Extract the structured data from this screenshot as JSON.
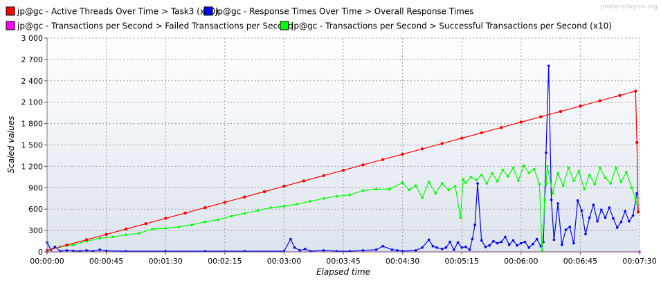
{
  "chart_data": {
    "type": "line",
    "title": "",
    "watermark": "jmeter-plugins.org",
    "xlabel": "Elapsed time",
    "ylabel": "Scaled values",
    "x_unit": "seconds elapsed",
    "xlim": [
      0,
      450
    ],
    "ylim": [
      0,
      3000
    ],
    "x_ticks": [
      0,
      45,
      90,
      135,
      180,
      225,
      270,
      315,
      360,
      405,
      450
    ],
    "x_tick_labels": [
      "00:00:00",
      "00:00:45",
      "00:01:30",
      "00:02:15",
      "00:03:00",
      "00:03:45",
      "00:04:30",
      "00:05:15",
      "00:06:00",
      "00:06:45",
      "00:07:30"
    ],
    "y_ticks": [
      0,
      300,
      600,
      900,
      1200,
      1500,
      1800,
      2100,
      2400,
      2700,
      3000
    ],
    "y_tick_labels": [
      "0",
      "300",
      "600",
      "900",
      "1 200",
      "1 500",
      "1 800",
      "2 100",
      "2 400",
      "2 700",
      "3 000"
    ],
    "grid": true,
    "legend_position": "top",
    "series": [
      {
        "name": "jp@gc - Active Threads Over Time > Task3 (x10)",
        "color": "#ff0000",
        "x": [
          0,
          15,
          30,
          45,
          60,
          75,
          90,
          105,
          120,
          135,
          150,
          165,
          180,
          195,
          210,
          225,
          240,
          255,
          270,
          285,
          300,
          315,
          330,
          345,
          360,
          375,
          390,
          405,
          420,
          435,
          447,
          448,
          449
        ],
        "values": [
          20,
          95,
          170,
          245,
          320,
          395,
          470,
          545,
          620,
          695,
          770,
          845,
          920,
          995,
          1070,
          1145,
          1220,
          1295,
          1370,
          1445,
          1520,
          1595,
          1670,
          1745,
          1820,
          1895,
          1970,
          2045,
          2120,
          2195,
          2255,
          1535,
          560
        ]
      },
      {
        "name": "jp@gc - Response Times Over Time > Overall Response Times",
        "color": "#0000ff",
        "x": [
          0,
          3,
          6,
          10,
          15,
          20,
          25,
          30,
          35,
          40,
          45,
          60,
          90,
          120,
          150,
          180,
          185,
          188,
          192,
          196,
          200,
          210,
          220,
          230,
          240,
          250,
          255,
          262,
          266,
          270,
          280,
          285,
          290,
          293,
          296,
          300,
          303,
          306,
          309,
          312,
          315,
          318,
          321,
          323,
          325,
          327,
          330,
          333,
          336,
          339,
          342,
          345,
          348,
          351,
          354,
          357,
          360,
          363,
          366,
          369,
          372,
          375,
          377,
          379,
          381,
          383,
          385,
          388,
          391,
          394,
          397,
          400,
          403,
          406,
          409,
          412,
          415,
          418,
          421,
          424,
          427,
          430,
          433,
          436,
          439,
          442,
          445,
          448
        ],
        "values": [
          130,
          30,
          70,
          10,
          20,
          15,
          10,
          20,
          10,
          30,
          15,
          10,
          10,
          10,
          10,
          10,
          180,
          60,
          20,
          40,
          10,
          20,
          10,
          10,
          20,
          30,
          80,
          30,
          20,
          10,
          20,
          60,
          170,
          80,
          60,
          40,
          60,
          140,
          30,
          130,
          60,
          70,
          30,
          180,
          380,
          960,
          160,
          70,
          90,
          150,
          120,
          140,
          210,
          100,
          160,
          90,
          120,
          140,
          60,
          110,
          180,
          80,
          140,
          1390,
          2610,
          730,
          170,
          680,
          100,
          310,
          350,
          120,
          720,
          580,
          250,
          480,
          660,
          430,
          590,
          480,
          620,
          470,
          340,
          420,
          570,
          430,
          510,
          820
        ]
      },
      {
        "name": "jp@gc - Transactions per Second > Failed Transactions per Second",
        "color": "#ff00ff",
        "x": [
          0,
          450
        ],
        "values": [
          0,
          0
        ]
      },
      {
        "name": "jp@gc - Transactions per Second > Successful Transactions per Second (x10)",
        "color": "#00ff00",
        "x": [
          0,
          10,
          20,
          30,
          40,
          50,
          60,
          70,
          80,
          90,
          100,
          110,
          120,
          130,
          140,
          150,
          160,
          170,
          180,
          190,
          200,
          210,
          220,
          230,
          240,
          250,
          260,
          270,
          275,
          280,
          285,
          290,
          295,
          300,
          305,
          310,
          314,
          316,
          318,
          322,
          326,
          330,
          334,
          338,
          342,
          346,
          350,
          354,
          358,
          362,
          366,
          370,
          374,
          376,
          377,
          378,
          379,
          380,
          384,
          388,
          392,
          396,
          400,
          404,
          408,
          412,
          416,
          420,
          424,
          428,
          432,
          436,
          440,
          444,
          447,
          449
        ],
        "values": [
          20,
          70,
          100,
          150,
          190,
          210,
          240,
          260,
          320,
          330,
          350,
          380,
          420,
          450,
          500,
          540,
          580,
          620,
          640,
          670,
          710,
          750,
          780,
          800,
          860,
          880,
          880,
          970,
          870,
          930,
          760,
          980,
          820,
          960,
          870,
          920,
          480,
          1020,
          970,
          1050,
          1010,
          1080,
          960,
          1100,
          990,
          1150,
          1060,
          1180,
          1000,
          1210,
          1110,
          1160,
          950,
          20,
          360,
          730,
          950,
          1200,
          820,
          1100,
          930,
          1180,
          1000,
          1130,
          880,
          1080,
          950,
          1180,
          1040,
          960,
          1180,
          980,
          1120,
          900,
          750,
          570
        ]
      }
    ]
  }
}
